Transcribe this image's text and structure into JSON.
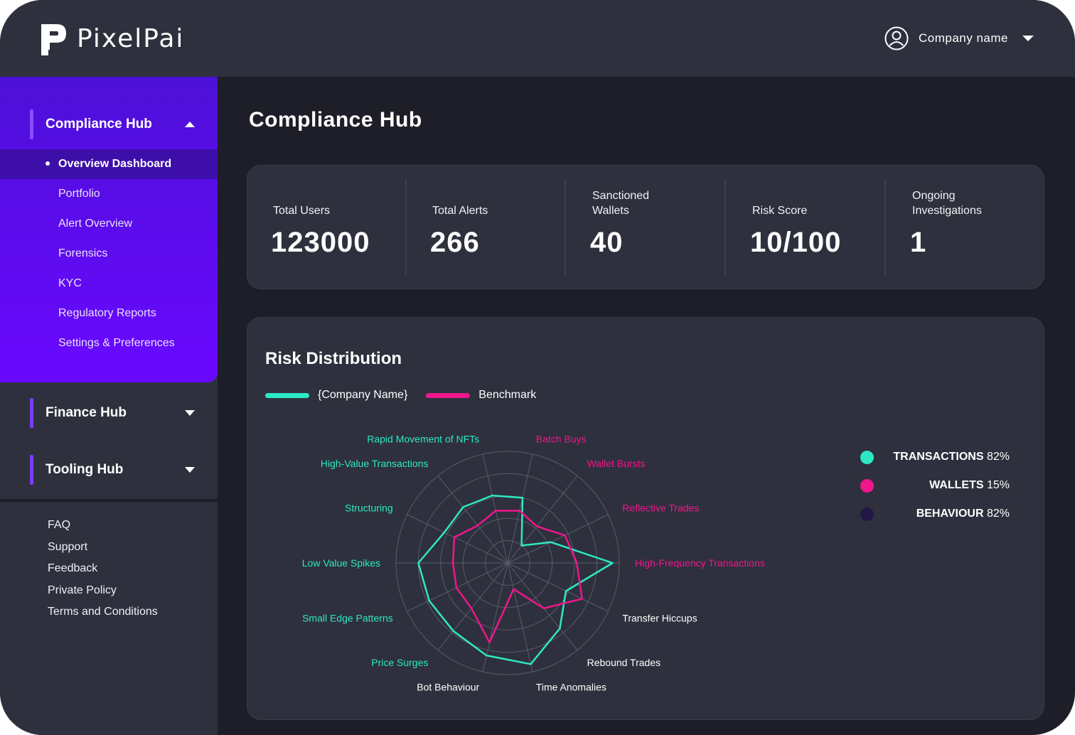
{
  "brand": {
    "name": "PixelPai"
  },
  "header": {
    "company_name": "Company name"
  },
  "sidebar": {
    "compliance_hub": {
      "label": "Compliance Hub",
      "items": [
        "Overview Dashboard",
        "Portfolio",
        "Alert Overview",
        "Forensics",
        "KYC",
        "Regulatory Reports",
        "Settings & Preferences"
      ],
      "active_index": 0
    },
    "finance_hub": {
      "label": "Finance Hub"
    },
    "tooling_hub": {
      "label": "Tooling Hub"
    },
    "footer_links": [
      "FAQ",
      "Support",
      "Feedback",
      "Private Policy",
      "Terms and Conditions"
    ]
  },
  "main": {
    "title": "Compliance Hub",
    "stats": [
      {
        "label": "Total Users",
        "value": "123000"
      },
      {
        "label": "Total Alerts",
        "value": "266"
      },
      {
        "label": "Sanctioned Wallets",
        "value": "40"
      },
      {
        "label": "Risk Score",
        "value": "10/100"
      },
      {
        "label": "Ongoing Investigations",
        "value": "1"
      }
    ],
    "risk": {
      "title": "Risk Distribution",
      "legend": [
        {
          "name": "{Company Name}",
          "color": "#2de8c4"
        },
        {
          "name": "Benchmark",
          "color": "#f0168c"
        }
      ],
      "percentages": [
        {
          "name": "TRANSACTIONS",
          "value": "82%",
          "color": "#2de8c4"
        },
        {
          "name": "WALLETS",
          "value": "15%",
          "color": "#f0168c"
        },
        {
          "name": "BEHAVIOUR",
          "value": "82%",
          "color": "#231845"
        }
      ]
    }
  },
  "chart_data": {
    "type": "radar",
    "title": "Risk Distribution",
    "categories": [
      "Batch Buys",
      "Wallet Bursts",
      "Reflective Trades",
      "High-Frequency Transactions",
      "Transfer Hiccups",
      "Rebound Trades",
      "Time Anomalies",
      "Bot Behaviour",
      "Price Surges",
      "Small Edge Patterns",
      "Low Value Spikes",
      "Structuring",
      "High-Value Transactions",
      "Rapid Movement of NFTs"
    ],
    "category_colors": [
      "#f0168c",
      "#f0168c",
      "#f0168c",
      "#f0168c",
      "#ffffff",
      "#ffffff",
      "#ffffff",
      "#ffffff",
      "#2de8c4",
      "#2de8c4",
      "#2de8c4",
      "#2de8c4",
      "#2de8c4",
      "#2de8c4"
    ],
    "rmax": 1.0,
    "rings": 5,
    "series": [
      {
        "name": "{Company Name}",
        "color": "#2de8c4",
        "values": [
          0.6,
          0.2,
          0.43,
          0.94,
          0.58,
          0.75,
          0.93,
          0.85,
          0.78,
          0.78,
          0.8,
          0.63,
          0.64,
          0.62
        ]
      },
      {
        "name": "Benchmark",
        "color": "#f0168c",
        "values": [
          0.48,
          0.42,
          0.57,
          0.62,
          0.74,
          0.52,
          0.24,
          0.73,
          0.52,
          0.51,
          0.49,
          0.53,
          0.43,
          0.48
        ]
      }
    ]
  }
}
